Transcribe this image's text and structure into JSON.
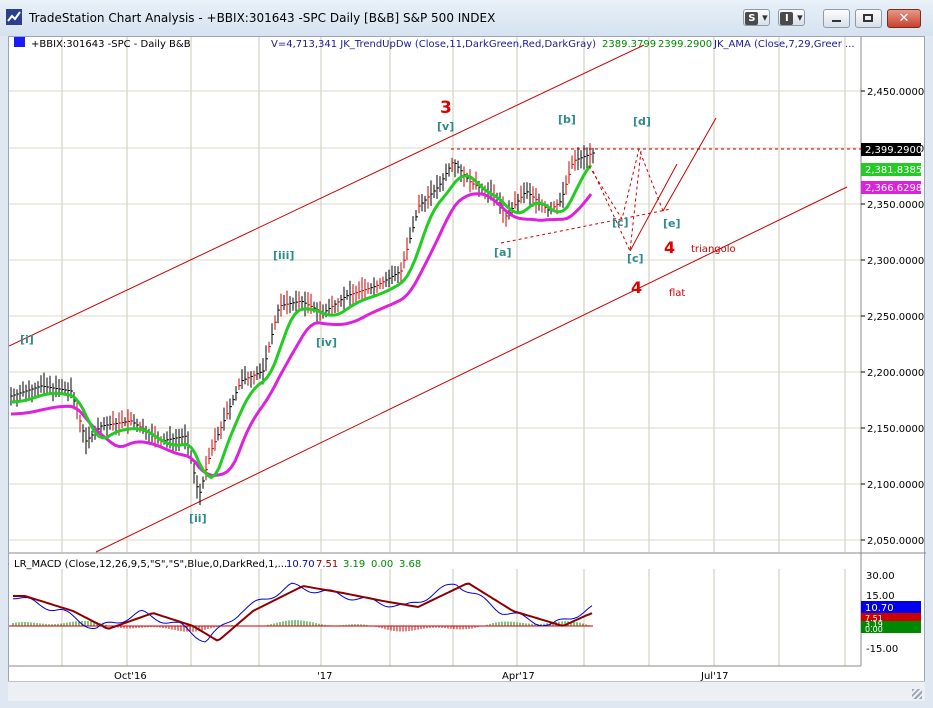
{
  "window": {
    "title": "TradeStation Chart Analysis - +BBIX:301643 -SPC Daily [B&B]  S&P 500 INDEX",
    "toolbar": [
      {
        "name": "style-button",
        "glyph": "S"
      },
      {
        "name": "indicator-button",
        "glyph": "I"
      }
    ],
    "controls": {
      "minimize": "–",
      "maximize": "□",
      "close": "✕"
    }
  },
  "header": {
    "symbol": "+BBIX:301643 -SPC - Daily  B&B",
    "indicator1": "V=4,713,341  JK_TrendUpDw (Close,11,DarkGreen,Red,DarkGray)",
    "value1": "2389.3799",
    "value2": "2399.2900",
    "indicator2": "JK_AMA (Close,7,29,Greer ..."
  },
  "price_axis": {
    "ticks": [
      "2,450.0000",
      "2,400.0000",
      "2,350.0000",
      "2,300.0000",
      "2,250.0000",
      "2,200.0000",
      "2,150.0000",
      "2,100.0000",
      "2,050.0000"
    ],
    "last_price": "2,399.2900",
    "tag_green": "2,381.8385",
    "tag_magenta": "2,366.6298"
  },
  "macd_panel": {
    "label": "LR_MACD (Close,12,26,9,5,\"S\",\"S\",Blue,0,DarkRed,1,...",
    "values": [
      "10.70",
      "7.51",
      "3.19",
      "0.00",
      "3.68"
    ],
    "ticks": [
      "30.00",
      "15.00",
      "-15.00"
    ],
    "tags": [
      "10.70",
      "7.51",
      "3.19",
      "0.00"
    ]
  },
  "x_axis": {
    "labels": [
      "Oct'16",
      "'17",
      "Apr'17",
      "Jul'17"
    ]
  },
  "annotations": {
    "wave_labels": [
      "[i]",
      "[ii]",
      "[iii]",
      "[iv]",
      "[v]",
      "[a]",
      "[b]",
      "[c]",
      "[d]",
      "[e]",
      "[c]"
    ],
    "big3": "3",
    "big4_triangle": "4",
    "triangle_text": "triangolo",
    "big4_flat": "4",
    "flat_text": "flat"
  },
  "colors": {
    "candle": "#000000",
    "down_bar": "#cc0000",
    "jk_trend": "#22cc22",
    "jk_ama": "#dd22dd",
    "channel": "#cc0000",
    "macd_line": "#0000dd",
    "macd_signal": "#8b0000",
    "wave_text": "#2e8b8b"
  }
}
